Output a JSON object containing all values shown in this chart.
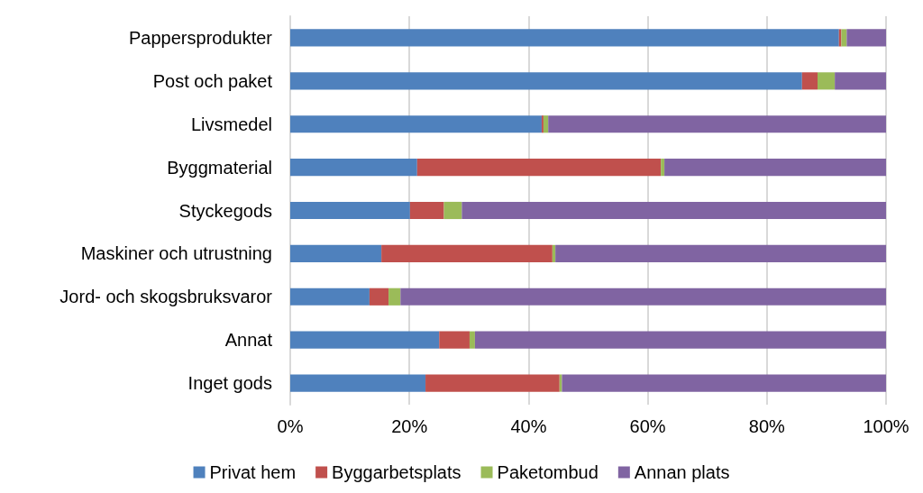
{
  "chart_data": {
    "type": "bar",
    "orientation": "horizontal",
    "stacked": true,
    "categories": [
      "Pappersprodukter",
      "Post och paket",
      "Livsmedel",
      "Byggmaterial",
      "Styckegods",
      "Maskiner och utrustning",
      "Jord- och skogsbruksvaror",
      "Annat",
      "Inget gods"
    ],
    "series": [
      {
        "name": "Privat hem",
        "color": "#4f81bd",
        "values": [
          92.1,
          85.9,
          42.2,
          21.3,
          20.1,
          15.3,
          13.3,
          25.0,
          22.7
        ]
      },
      {
        "name": "Byggarbetsplats",
        "color": "#c0504d",
        "values": [
          0.4,
          2.6,
          0.3,
          40.9,
          5.7,
          28.7,
          3.2,
          5.1,
          22.5
        ]
      },
      {
        "name": "Paketombud",
        "color": "#9bbb59",
        "values": [
          0.9,
          2.9,
          0.8,
          0.6,
          3.0,
          0.5,
          2.0,
          0.9,
          0.4
        ]
      },
      {
        "name": "Annan plats",
        "color": "#8064a2",
        "values": [
          6.6,
          8.6,
          56.7,
          37.2,
          71.2,
          55.5,
          81.5,
          69.0,
          54.4
        ]
      }
    ],
    "xlim": [
      0,
      100
    ],
    "xticks": [
      {
        "value": 0,
        "label": "0%"
      },
      {
        "value": 20,
        "label": "20%"
      },
      {
        "value": 40,
        "label": "40%"
      },
      {
        "value": 60,
        "label": "60%"
      },
      {
        "value": 80,
        "label": "80%"
      },
      {
        "value": 100,
        "label": "100%"
      }
    ],
    "grid": "x",
    "legend": "bottom"
  }
}
